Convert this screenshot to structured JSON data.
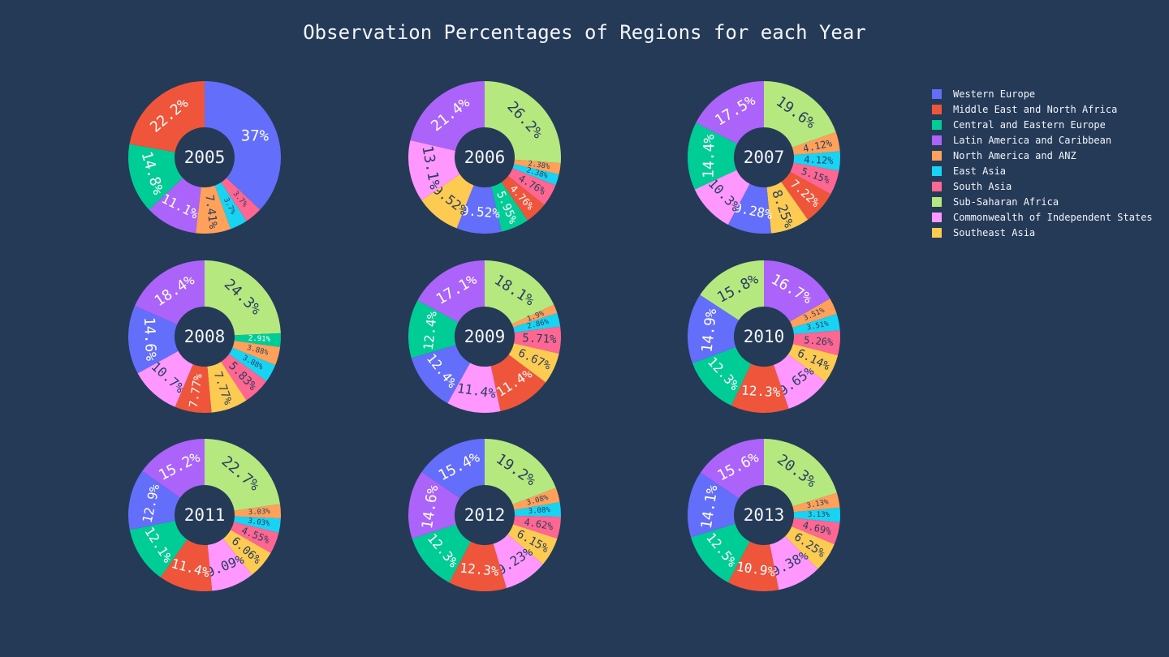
{
  "chart_data": {
    "type": "pie",
    "title": "Observation Percentages of Regions for each Year",
    "hole": true,
    "legend_position": "top-right",
    "series": [
      {
        "name": "Western Europe",
        "color": "#636efa"
      },
      {
        "name": "Middle East and North Africa",
        "color": "#ef553b"
      },
      {
        "name": "Central and Eastern Europe",
        "color": "#00cc96"
      },
      {
        "name": "Latin America and Caribbean",
        "color": "#ab63fa"
      },
      {
        "name": "North America and ANZ",
        "color": "#ffa15a"
      },
      {
        "name": "East Asia",
        "color": "#19d3f3"
      },
      {
        "name": "South Asia",
        "color": "#ff6692"
      },
      {
        "name": "Sub-Saharan Africa",
        "color": "#b6e880"
      },
      {
        "name": "Commonwealth of Independent States",
        "color": "#ff97ff"
      },
      {
        "name": "Southeast Asia",
        "color": "#fecb52"
      }
    ],
    "charts": [
      {
        "year": "2005",
        "slices": [
          {
            "series": 0,
            "value": 37,
            "label": "37%"
          },
          {
            "series": 6,
            "value": 3.7,
            "label": "3.7%"
          },
          {
            "series": 5,
            "value": 3.7,
            "label": "3.7%"
          },
          {
            "series": 4,
            "value": 7.41,
            "label": "7.41%"
          },
          {
            "series": 3,
            "value": 11.1,
            "label": "11.1%"
          },
          {
            "series": 2,
            "value": 14.8,
            "label": "14.8%"
          },
          {
            "series": 1,
            "value": 22.2,
            "label": "22.2%"
          }
        ]
      },
      {
        "year": "2006",
        "slices": [
          {
            "series": 7,
            "value": 26.2,
            "label": "26.2%"
          },
          {
            "series": 4,
            "value": 2.38,
            "label": "2.38%"
          },
          {
            "series": 5,
            "value": 2.38,
            "label": "2.38%"
          },
          {
            "series": 6,
            "value": 4.76,
            "label": "4.76%"
          },
          {
            "series": 1,
            "value": 4.76,
            "label": "4.76%"
          },
          {
            "series": 2,
            "value": 5.95,
            "label": "5.95%"
          },
          {
            "series": 0,
            "value": 9.52,
            "label": "9.52%"
          },
          {
            "series": 9,
            "value": 9.52,
            "label": "9.52%"
          },
          {
            "series": 8,
            "value": 13.1,
            "label": "13.1%"
          },
          {
            "series": 3,
            "value": 21.4,
            "label": "21.4%"
          }
        ]
      },
      {
        "year": "2007",
        "slices": [
          {
            "series": 7,
            "value": 19.6,
            "label": "19.6%"
          },
          {
            "series": 4,
            "value": 4.12,
            "label": "4.12%"
          },
          {
            "series": 5,
            "value": 4.12,
            "label": "4.12%"
          },
          {
            "series": 6,
            "value": 5.15,
            "label": "5.15%"
          },
          {
            "series": 1,
            "value": 7.22,
            "label": "7.22%"
          },
          {
            "series": 9,
            "value": 8.25,
            "label": "8.25%"
          },
          {
            "series": 0,
            "value": 9.28,
            "label": "9.28%"
          },
          {
            "series": 8,
            "value": 10.3,
            "label": "10.3%"
          },
          {
            "series": 2,
            "value": 14.4,
            "label": "14.4%"
          },
          {
            "series": 3,
            "value": 17.5,
            "label": "17.5%"
          }
        ]
      },
      {
        "year": "2008",
        "slices": [
          {
            "series": 7,
            "value": 24.3,
            "label": "24.3%"
          },
          {
            "series": 2,
            "value": 2.91,
            "label": "2.91%"
          },
          {
            "series": 4,
            "value": 3.88,
            "label": "3.88%"
          },
          {
            "series": 5,
            "value": 3.88,
            "label": "3.88%"
          },
          {
            "series": 6,
            "value": 5.83,
            "label": "5.83%"
          },
          {
            "series": 9,
            "value": 7.77,
            "label": "7.77%"
          },
          {
            "series": 1,
            "value": 7.77,
            "label": "7.77%"
          },
          {
            "series": 8,
            "value": 10.7,
            "label": "10.7%"
          },
          {
            "series": 0,
            "value": 14.6,
            "label": "14.6%"
          },
          {
            "series": 3,
            "value": 18.4,
            "label": "18.4%"
          }
        ]
      },
      {
        "year": "2009",
        "slices": [
          {
            "series": 7,
            "value": 18.1,
            "label": "18.1%"
          },
          {
            "series": 4,
            "value": 1.9,
            "label": "1.9%"
          },
          {
            "series": 5,
            "value": 2.86,
            "label": "2.86%"
          },
          {
            "series": 6,
            "value": 5.71,
            "label": "5.71%"
          },
          {
            "series": 9,
            "value": 6.67,
            "label": "6.67%"
          },
          {
            "series": 1,
            "value": 11.4,
            "label": "11.4%"
          },
          {
            "series": 8,
            "value": 11.4,
            "label": "11.4%"
          },
          {
            "series": 0,
            "value": 12.4,
            "label": "12.4%"
          },
          {
            "series": 2,
            "value": 12.4,
            "label": "12.4%"
          },
          {
            "series": 3,
            "value": 17.1,
            "label": "17.1%"
          }
        ]
      },
      {
        "year": "2010",
        "slices": [
          {
            "series": 3,
            "value": 16.7,
            "label": "16.7%"
          },
          {
            "series": 4,
            "value": 3.51,
            "label": "3.51%"
          },
          {
            "series": 5,
            "value": 3.51,
            "label": "3.51%"
          },
          {
            "series": 6,
            "value": 5.26,
            "label": "5.26%"
          },
          {
            "series": 9,
            "value": 6.14,
            "label": "6.14%"
          },
          {
            "series": 8,
            "value": 9.65,
            "label": "9.65%"
          },
          {
            "series": 1,
            "value": 12.3,
            "label": "12.3%"
          },
          {
            "series": 2,
            "value": 12.3,
            "label": "12.3%"
          },
          {
            "series": 0,
            "value": 14.9,
            "label": "14.9%"
          },
          {
            "series": 7,
            "value": 15.8,
            "label": "15.8%"
          }
        ]
      },
      {
        "year": "2011",
        "slices": [
          {
            "series": 7,
            "value": 22.7,
            "label": "22.7%"
          },
          {
            "series": 4,
            "value": 3.03,
            "label": "3.03%"
          },
          {
            "series": 5,
            "value": 3.03,
            "label": "3.03%"
          },
          {
            "series": 6,
            "value": 4.55,
            "label": "4.55%"
          },
          {
            "series": 9,
            "value": 6.06,
            "label": "6.06%"
          },
          {
            "series": 8,
            "value": 9.09,
            "label": "9.09%"
          },
          {
            "series": 1,
            "value": 11.4,
            "label": "11.4%"
          },
          {
            "series": 2,
            "value": 12.1,
            "label": "12.1%"
          },
          {
            "series": 0,
            "value": 12.9,
            "label": "12.9%"
          },
          {
            "series": 3,
            "value": 15.2,
            "label": "15.2%"
          }
        ]
      },
      {
        "year": "2012",
        "slices": [
          {
            "series": 7,
            "value": 19.2,
            "label": "19.2%"
          },
          {
            "series": 4,
            "value": 3.08,
            "label": "3.08%"
          },
          {
            "series": 5,
            "value": 3.08,
            "label": "3.08%"
          },
          {
            "series": 6,
            "value": 4.62,
            "label": "4.62%"
          },
          {
            "series": 9,
            "value": 6.15,
            "label": "6.15%"
          },
          {
            "series": 8,
            "value": 9.23,
            "label": "9.23%"
          },
          {
            "series": 1,
            "value": 12.3,
            "label": "12.3%"
          },
          {
            "series": 2,
            "value": 12.3,
            "label": "12.3%"
          },
          {
            "series": 3,
            "value": 14.6,
            "label": "14.6%"
          },
          {
            "series": 0,
            "value": 15.4,
            "label": "15.4%"
          }
        ]
      },
      {
        "year": "2013",
        "slices": [
          {
            "series": 7,
            "value": 20.3,
            "label": "20.3%"
          },
          {
            "series": 4,
            "value": 3.13,
            "label": "3.13%"
          },
          {
            "series": 5,
            "value": 3.13,
            "label": "3.13%"
          },
          {
            "series": 6,
            "value": 4.69,
            "label": "4.69%"
          },
          {
            "series": 9,
            "value": 6.25,
            "label": "6.25%"
          },
          {
            "series": 8,
            "value": 9.38,
            "label": "9.38%"
          },
          {
            "series": 1,
            "value": 10.9,
            "label": "10.9%"
          },
          {
            "series": 2,
            "value": 12.5,
            "label": "12.5%"
          },
          {
            "series": 0,
            "value": 14.1,
            "label": "14.1%"
          },
          {
            "series": 3,
            "value": 15.6,
            "label": "15.6%"
          }
        ]
      }
    ]
  }
}
